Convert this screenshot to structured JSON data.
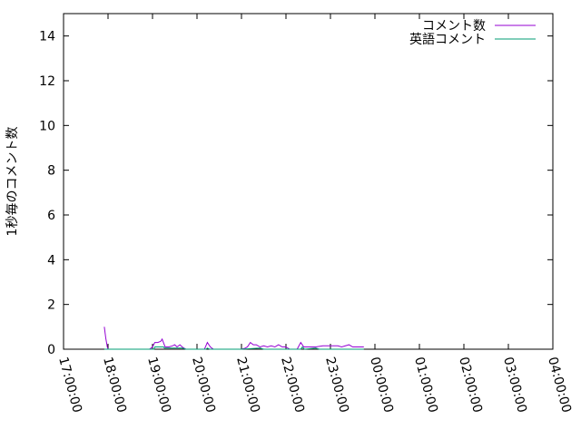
{
  "chart_data": {
    "type": "line",
    "title": "",
    "xlabel": "",
    "ylabel": "1秒毎のコメント数",
    "xlim": [
      "17:00:00",
      "04:00:00"
    ],
    "ylim": [
      0,
      15
    ],
    "x_ticks": [
      "17:00:00",
      "18:00:00",
      "19:00:00",
      "20:00:00",
      "21:00:00",
      "22:00:00",
      "23:00:00",
      "00:00:00",
      "01:00:00",
      "02:00:00",
      "03:00:00",
      "04:00:00"
    ],
    "y_ticks": [
      "0",
      "2",
      "4",
      "6",
      "8",
      "10",
      "12",
      "14"
    ],
    "legend_position": "top-right",
    "grid": false,
    "series": [
      {
        "name": "コメント数",
        "color": "#9400d3",
        "points": [
          [
            "17:55",
            1.0
          ],
          [
            "17:57",
            0.5
          ],
          [
            "17:59",
            0.1
          ],
          [
            "18:00",
            0
          ],
          [
            "18:56",
            0
          ],
          [
            "19:00",
            0.1
          ],
          [
            "19:03",
            0.3
          ],
          [
            "19:07",
            0.3
          ],
          [
            "19:11",
            0.35
          ],
          [
            "19:13",
            0.45
          ],
          [
            "19:17",
            0.1
          ],
          [
            "19:22",
            0.1
          ],
          [
            "19:27",
            0.15
          ],
          [
            "19:30",
            0.2
          ],
          [
            "19:33",
            0.1
          ],
          [
            "19:37",
            0.2
          ],
          [
            "19:40",
            0.1
          ],
          [
            "19:45",
            0
          ],
          [
            "20:10",
            0
          ],
          [
            "20:14",
            0.3
          ],
          [
            "20:18",
            0.1
          ],
          [
            "20:22",
            0
          ],
          [
            "21:00",
            0
          ],
          [
            "21:05",
            0.05
          ],
          [
            "21:08",
            0.1
          ],
          [
            "21:12",
            0.3
          ],
          [
            "21:16",
            0.2
          ],
          [
            "21:20",
            0.2
          ],
          [
            "21:25",
            0.1
          ],
          [
            "21:30",
            0.15
          ],
          [
            "21:35",
            0.1
          ],
          [
            "21:40",
            0.15
          ],
          [
            "21:45",
            0.1
          ],
          [
            "21:50",
            0.2
          ],
          [
            "21:55",
            0.1
          ],
          [
            "22:00",
            0.1
          ],
          [
            "22:05",
            0
          ],
          [
            "22:15",
            0
          ],
          [
            "22:20",
            0.3
          ],
          [
            "22:24",
            0.1
          ],
          [
            "22:30",
            0.1
          ],
          [
            "22:40",
            0.1
          ],
          [
            "22:50",
            0.15
          ],
          [
            "23:00",
            0.15
          ],
          [
            "23:10",
            0.15
          ],
          [
            "23:15",
            0.1
          ],
          [
            "23:25",
            0.2
          ],
          [
            "23:30",
            0.1
          ],
          [
            "23:45",
            0.1
          ]
        ]
      },
      {
        "name": "英語コメント",
        "color": "#009e73",
        "points": [
          [
            "17:55",
            0
          ],
          [
            "19:02",
            0
          ],
          [
            "19:03",
            0.1
          ],
          [
            "19:15",
            0.1
          ],
          [
            "19:16",
            0.05
          ],
          [
            "19:40",
            0.05
          ],
          [
            "19:45",
            0
          ],
          [
            "20:12",
            0
          ],
          [
            "20:14",
            0.05
          ],
          [
            "20:17",
            0
          ],
          [
            "21:00",
            0
          ],
          [
            "21:25",
            0.05
          ],
          [
            "21:30",
            0
          ],
          [
            "22:20",
            0
          ],
          [
            "22:22",
            0.1
          ],
          [
            "22:25",
            0
          ],
          [
            "22:40",
            0.05
          ],
          [
            "22:45",
            0
          ],
          [
            "23:45",
            0
          ]
        ]
      }
    ]
  }
}
